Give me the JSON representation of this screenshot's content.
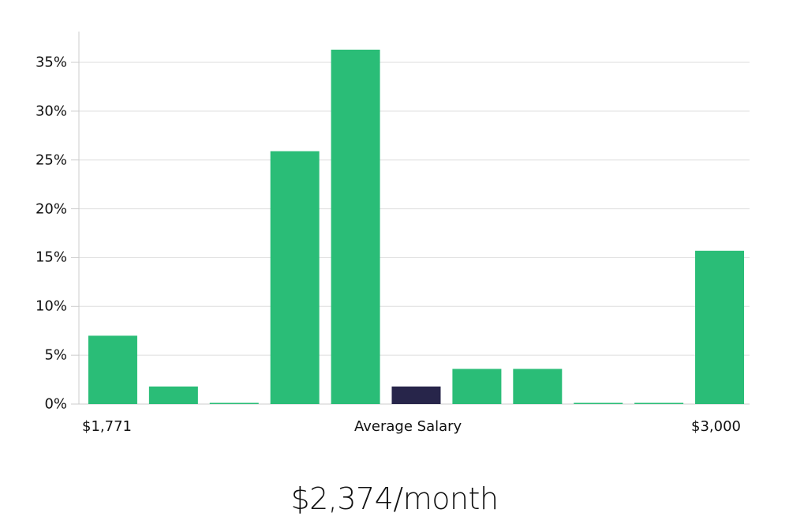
{
  "chart_data": {
    "type": "bar",
    "title": "",
    "xlabel": "Average Salary",
    "ylabel": "",
    "ylim": [
      0,
      38
    ],
    "grid": true,
    "legend": null,
    "x_range_labels": {
      "min": "$1,771",
      "max": "$3,000"
    },
    "yticks": [
      "0%",
      "5%",
      "10%",
      "15%",
      "20%",
      "25%",
      "30%",
      "35%"
    ],
    "ytick_values": [
      0,
      5,
      10,
      15,
      20,
      25,
      30,
      35
    ],
    "categories": [
      "bin1",
      "bin2",
      "bin3",
      "bin4",
      "bin5",
      "bin6",
      "bin7",
      "bin8",
      "bin9",
      "bin10",
      "bin11"
    ],
    "values": [
      7.0,
      1.8,
      0.1,
      25.9,
      36.3,
      1.8,
      3.6,
      3.6,
      0.1,
      0.1,
      15.7
    ],
    "highlight_index": 5,
    "colors": {
      "bar": "#2abd77",
      "highlight": "#27254a",
      "grid": "#dddddd",
      "axis": "#cccccc"
    }
  },
  "labels": {
    "x_min": "$1,771",
    "x_center": "Average Salary",
    "x_max": "$3,000"
  },
  "summary": {
    "value": "$2,374/month"
  }
}
